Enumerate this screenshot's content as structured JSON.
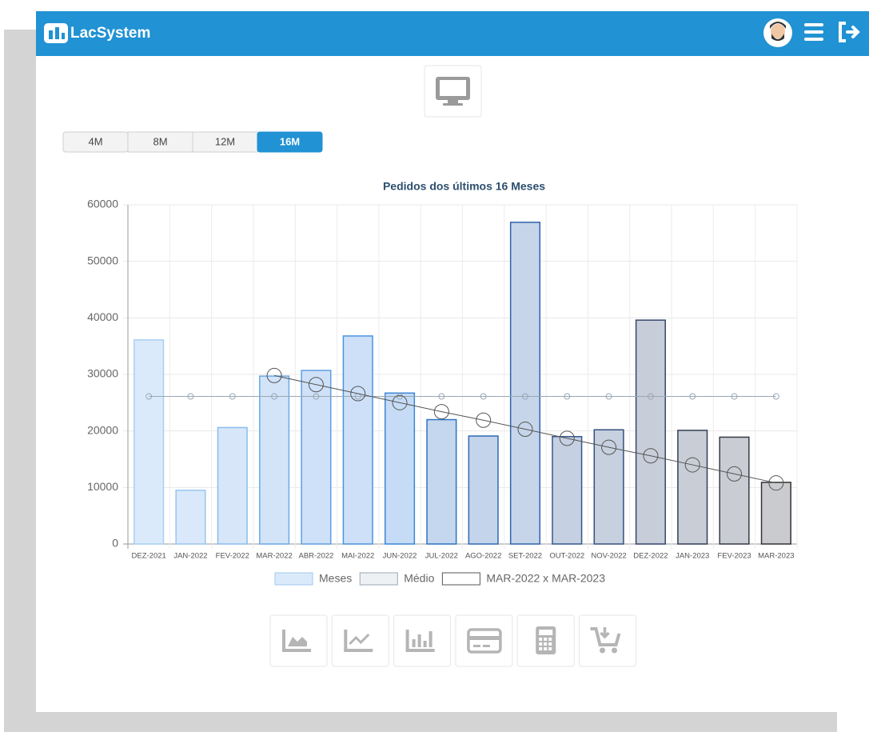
{
  "header": {
    "logo": "LacSystem"
  },
  "period_buttons": [
    "4M",
    "8M",
    "12M",
    "16M"
  ],
  "active_button": 3,
  "chart_data": {
    "type": "bar",
    "title": "Pedidos dos últimos 16 Meses",
    "categories": [
      "DEZ-2021",
      "JAN-2022",
      "FEV-2022",
      "MAR-2022",
      "ABR-2022",
      "MAI-2022",
      "JUN-2022",
      "JUL-2022",
      "AGO-2022",
      "SET-2022",
      "OUT-2022",
      "NOV-2022",
      "DEZ-2022",
      "JAN-2023",
      "FEV-2023",
      "MAR-2023"
    ],
    "series": [
      {
        "name": "Meses",
        "type": "bar",
        "color": "#dbeafb",
        "border_color": "#9cc8ef",
        "colors": [
          "#dbeafb",
          "#d9e8fa",
          "#d7e6f9",
          "#d3e4f8",
          "#cfe1f8",
          "#cde0f8",
          "#c6dcf6",
          "#c4d7ef",
          "#c4d4ea",
          "#c6d5ea",
          "#c5d0e2",
          "#c6d0df",
          "#c8ced9",
          "#c8cdd6",
          "#c9ccd2",
          "#cacbcf"
        ],
        "border_colors": [
          "#a7cff2",
          "#98c6ee",
          "#8abded",
          "#6aa9e6",
          "#5c9fe2",
          "#4b94de",
          "#3a86d6",
          "#2d73c2",
          "#2f6ab4",
          "#2f63a8",
          "#34588f",
          "#354f7e",
          "#34476c",
          "#333e58",
          "#343a48",
          "#333333"
        ],
        "values": [
          36100,
          9500,
          20600,
          29700,
          30700,
          36800,
          26700,
          22000,
          19100,
          56900,
          19000,
          20200,
          39600,
          20100,
          18900,
          10900
        ]
      },
      {
        "name": "Médio",
        "type": "line",
        "color": "#eef1f4",
        "border_color": "#9aa7b4",
        "values": [
          26100,
          26100,
          26100,
          26100,
          26100,
          26100,
          26100,
          26100,
          26100,
          26100,
          26100,
          26100,
          26100,
          26100,
          26100,
          26100
        ]
      },
      {
        "name": "MAR-2022 x MAR-2023",
        "type": "line",
        "color": "#ffffff",
        "border_color": "#555555",
        "values": [
          null,
          null,
          null,
          29800,
          28200,
          26600,
          25000,
          23400,
          21900,
          20300,
          18700,
          17100,
          15600,
          14000,
          12400,
          10800
        ]
      }
    ],
    "ylim": [
      0,
      60000
    ],
    "yticks": [
      0,
      10000,
      20000,
      30000,
      40000,
      50000,
      60000
    ],
    "grid": true
  }
}
